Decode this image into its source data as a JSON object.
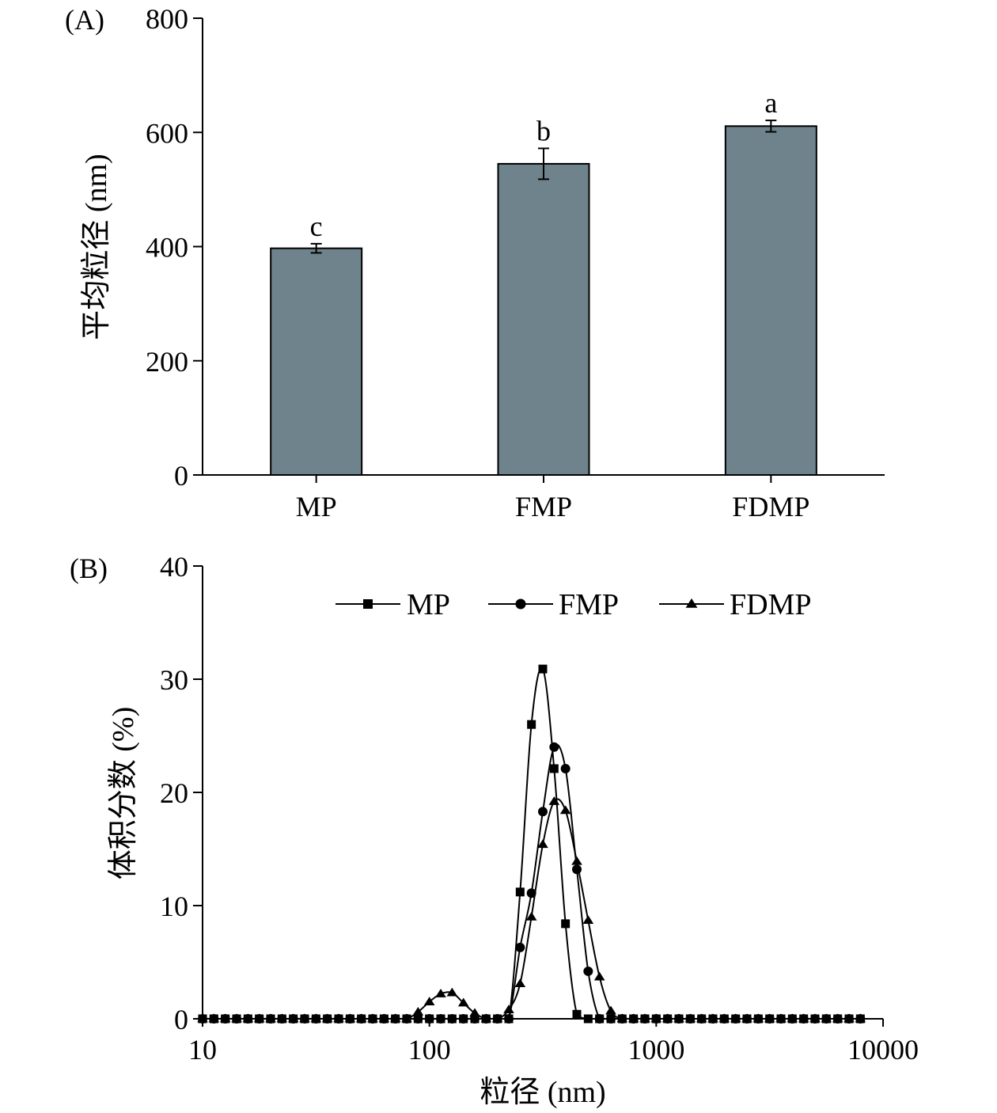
{
  "chart_data": [
    {
      "panel": "(A)",
      "type": "bar",
      "title": "",
      "xlabel": "",
      "ylabel": "平均粒径 (nm)",
      "ylim": [
        0,
        800
      ],
      "yticks": [
        0,
        200,
        400,
        600,
        800
      ],
      "categories": [
        "MP",
        "FMP",
        "FDMP"
      ],
      "values": [
        397,
        545,
        611
      ],
      "errors": [
        8,
        27,
        10
      ],
      "significance": [
        "c",
        "b",
        "a"
      ],
      "bar_color": "#6e838b",
      "grid": false
    },
    {
      "panel": "(B)",
      "type": "line",
      "title": "",
      "xlabel": "粒径 (nm)",
      "ylabel": "体积分数 (%)",
      "xscale": "log",
      "xlim": [
        10,
        10000
      ],
      "xticks": [
        10,
        100,
        1000,
        10000
      ],
      "xtick_labels": [
        "10",
        "100",
        "1000",
        "10000"
      ],
      "ylim": [
        0,
        40
      ],
      "yticks": [
        0,
        10,
        20,
        30,
        40
      ],
      "yticklabels": [
        "0",
        "10",
        "20",
        "30",
        "40"
      ],
      "legend_position": "top",
      "grid": false,
      "x": [
        10,
        11.22,
        12.59,
        14.13,
        15.85,
        17.78,
        19.95,
        22.39,
        25.12,
        28.18,
        31.62,
        35.48,
        39.81,
        44.67,
        50.12,
        56.23,
        63.1,
        70.79,
        79.43,
        89.13,
        100,
        112.2,
        125.9,
        141.3,
        158.5,
        177.8,
        199.5,
        223.9,
        251.2,
        281.8,
        316.2,
        354.8,
        398.1,
        446.7,
        501.2,
        562.3,
        631,
        707.9,
        794.3,
        891.3,
        1000,
        1122,
        1259,
        1413,
        1585,
        1778,
        1995,
        2239,
        2512,
        2818,
        3162,
        3548,
        3981,
        4467,
        5012,
        5623,
        6310,
        7079,
        7943
      ],
      "series": [
        {
          "name": "MP",
          "marker": "square",
          "values": [
            0,
            0,
            0,
            0,
            0,
            0,
            0,
            0,
            0,
            0,
            0,
            0,
            0,
            0,
            0,
            0,
            0,
            0,
            0,
            0,
            0,
            0,
            0,
            0,
            0,
            0,
            0,
            0,
            11.2,
            26,
            30.9,
            22.1,
            8.4,
            0.4,
            0,
            0,
            0,
            0,
            0,
            0,
            0,
            0,
            0,
            0,
            0,
            0,
            0,
            0,
            0,
            0,
            0,
            0,
            0,
            0,
            0,
            0,
            0,
            0,
            0
          ]
        },
        {
          "name": "FMP",
          "marker": "circle",
          "values": [
            0,
            0,
            0,
            0,
            0,
            0,
            0,
            0,
            0,
            0,
            0,
            0,
            0,
            0,
            0,
            0,
            0,
            0,
            0,
            0,
            0,
            0,
            0,
            0,
            0,
            0,
            0,
            0,
            6.3,
            11.1,
            18.3,
            24,
            22.1,
            13.2,
            4.2,
            0,
            0,
            0,
            0,
            0,
            0,
            0,
            0,
            0,
            0,
            0,
            0,
            0,
            0,
            0,
            0,
            0,
            0,
            0,
            0,
            0,
            0,
            0,
            0
          ]
        },
        {
          "name": "FDMP",
          "marker": "triangle",
          "values": [
            0,
            0,
            0,
            0,
            0,
            0,
            0,
            0,
            0,
            0,
            0,
            0,
            0,
            0,
            0,
            0,
            0,
            0,
            0,
            0.6,
            1.5,
            2.2,
            2.3,
            1.4,
            0.5,
            0,
            0,
            0.8,
            3.1,
            9,
            15.4,
            19.2,
            18.4,
            13.9,
            8.7,
            3.7,
            0.7,
            0,
            0,
            0,
            0,
            0,
            0,
            0,
            0,
            0,
            0,
            0,
            0,
            0,
            0,
            0,
            0,
            0,
            0,
            0,
            0,
            0,
            0
          ]
        }
      ]
    }
  ]
}
